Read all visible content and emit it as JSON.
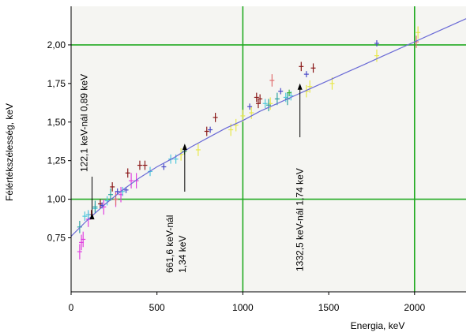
{
  "chart_data": {
    "type": "scatter",
    "xlabel": "Energia, keV",
    "ylabel": "Félértékszélesség, keV",
    "xlim": [
      0,
      2300
    ],
    "ylim": [
      0.4,
      2.25
    ],
    "x_ticks": [
      {
        "value": 0,
        "label": "0"
      },
      {
        "value": 500,
        "label": "500"
      },
      {
        "value": 1000,
        "label": "1000"
      },
      {
        "value": 1500,
        "label": "1500"
      },
      {
        "value": 2000,
        "label": "2000"
      }
    ],
    "y_ticks": [
      {
        "value": 0.75,
        "label": "0,75"
      },
      {
        "value": 1.0,
        "label": "1,00"
      },
      {
        "value": 1.25,
        "label": "1,25"
      },
      {
        "value": 1.5,
        "label": "1,50"
      },
      {
        "value": 1.75,
        "label": "1,75"
      },
      {
        "value": 2.0,
        "label": "2,00"
      }
    ],
    "grid": {
      "x": [
        1000,
        2000
      ],
      "y": [
        1.0,
        2.0
      ],
      "color": "#22aa22"
    },
    "background": "#f5f5f2",
    "fit_curve": {
      "color": "#6a6ad6",
      "points": [
        [
          0,
          0.76
        ],
        [
          100,
          0.87
        ],
        [
          200,
          0.97
        ],
        [
          300,
          1.06
        ],
        [
          400,
          1.14
        ],
        [
          500,
          1.21
        ],
        [
          600,
          1.27
        ],
        [
          700,
          1.34
        ],
        [
          800,
          1.4
        ],
        [
          900,
          1.46
        ],
        [
          1000,
          1.51
        ],
        [
          1100,
          1.57
        ],
        [
          1200,
          1.62
        ],
        [
          1300,
          1.67
        ],
        [
          1400,
          1.72
        ],
        [
          1500,
          1.77
        ],
        [
          1600,
          1.82
        ],
        [
          1700,
          1.87
        ],
        [
          1800,
          1.92
        ],
        [
          1900,
          1.97
        ],
        [
          2000,
          2.02
        ],
        [
          2100,
          2.07
        ],
        [
          2200,
          2.12
        ],
        [
          2300,
          2.17
        ]
      ]
    },
    "series": [
      {
        "color": "#8b1a1a",
        "points": [
          [
            118,
            0.9
          ],
          [
            170,
            0.97
          ],
          [
            240,
            1.08
          ],
          [
            330,
            1.17
          ],
          [
            400,
            1.22
          ],
          [
            430,
            1.22
          ],
          [
            790,
            1.44
          ],
          [
            840,
            1.53
          ],
          [
            1080,
            1.66
          ],
          [
            1090,
            1.62
          ],
          [
            1100,
            1.65
          ],
          [
            1340,
            1.86
          ],
          [
            1410,
            1.85
          ]
        ],
        "err": 0.03
      },
      {
        "color": "#e8e84c",
        "points": [
          [
            640,
            1.29
          ],
          [
            740,
            1.32
          ],
          [
            930,
            1.45
          ],
          [
            960,
            1.48
          ],
          [
            1000,
            1.54
          ],
          [
            1050,
            1.56
          ],
          [
            1160,
            1.62
          ],
          [
            1370,
            1.7
          ],
          [
            1390,
            1.73
          ],
          [
            1520,
            1.75
          ],
          [
            1780,
            1.93
          ],
          [
            2020,
            2.08
          ]
        ],
        "err": 0.04
      },
      {
        "color": "#e040e0",
        "points": [
          [
            50,
            0.66
          ],
          [
            60,
            0.72
          ],
          [
            70,
            0.74
          ],
          [
            100,
            0.87
          ],
          [
            190,
            0.95
          ],
          [
            260,
            1.0
          ],
          [
            290,
            1.03
          ],
          [
            350,
            1.12
          ],
          [
            380,
            1.12
          ]
        ],
        "err": 0.05
      },
      {
        "color": "#50c8dc",
        "points": [
          [
            80,
            0.89
          ],
          [
            100,
            0.9
          ],
          [
            140,
            0.94
          ],
          [
            210,
            0.99
          ],
          [
            300,
            1.05
          ],
          [
            460,
            1.18
          ],
          [
            580,
            1.26
          ],
          [
            610,
            1.26
          ],
          [
            1130,
            1.62
          ],
          [
            1250,
            1.66
          ],
          [
            1280,
            1.67
          ]
        ],
        "err": 0.03
      },
      {
        "color": "#4848c8",
        "points": [
          [
            180,
            0.96
          ],
          [
            270,
            1.05
          ],
          [
            320,
            1.06
          ],
          [
            540,
            1.21
          ],
          [
            810,
            1.45
          ],
          [
            1040,
            1.6
          ],
          [
            1220,
            1.7
          ],
          [
            1370,
            1.81
          ],
          [
            1780,
            2.01
          ]
        ],
        "err": 0.02
      },
      {
        "color": "#2aa0a0",
        "points": [
          [
            50,
            0.82
          ],
          [
            140,
            0.95
          ],
          [
            230,
            1.03
          ],
          [
            1150,
            1.61
          ],
          [
            1200,
            1.65
          ],
          [
            1260,
            1.65
          ]
        ],
        "err": 0.04
      },
      {
        "color": "#e07070",
        "points": [
          [
            260,
            1.0
          ],
          [
            1170,
            1.77
          ],
          [
            2010,
            2.02
          ]
        ],
        "err": 0.04
      },
      {
        "color": "#3ab03a",
        "points": [
          [
            660,
            1.31
          ],
          [
            1270,
            1.69
          ]
        ],
        "err": 0.02
      }
    ],
    "annotations": [
      {
        "text": "122,1 keV-nál 0,89 keV",
        "energy": 122.1,
        "fwhm": 0.89
      },
      {
        "text": "661,6 keV-nál 1,34 keV",
        "line1": "661,6 keV-nál",
        "line2": "1,34 keV",
        "energy": 661.6,
        "fwhm": 1.34
      },
      {
        "text": "1332,5 keV-nál 1,74 keV",
        "energy": 1332.5,
        "fwhm": 1.74
      }
    ]
  }
}
